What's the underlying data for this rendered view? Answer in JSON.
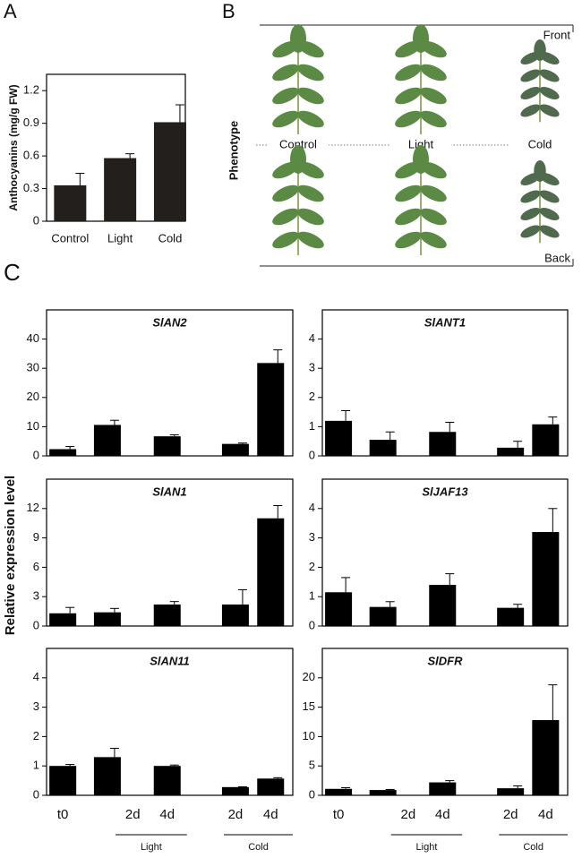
{
  "panels": {
    "a": "A",
    "b": "B",
    "c": "C"
  },
  "phenotype": {
    "label": "Phenotype",
    "front": "Front",
    "back": "Back",
    "treatments": [
      "Control",
      "Light",
      "Cold"
    ]
  },
  "chart_data": [
    {
      "type": "bar",
      "ylabel": "Anthocyanins (mg/g FW)",
      "categories": [
        "Control",
        "Light",
        "Cold"
      ],
      "values": [
        0.33,
        0.58,
        0.91
      ],
      "errors": [
        0.11,
        0.04,
        0.16
      ],
      "color": "#231f1c",
      "ylim": [
        0,
        1.35
      ],
      "yticks": [
        0,
        0.3,
        0.6,
        0.9,
        1.2
      ]
    },
    {
      "type": "bar",
      "title": "SlAN2",
      "ylabel": "Relative expression level",
      "values": [
        2.3,
        10.6,
        6.7,
        4.1,
        31.8
      ],
      "errors": [
        0.9,
        1.6,
        0.5,
        0.3,
        4.5
      ],
      "color": "#000000",
      "ylim": [
        0,
        50
      ],
      "yticks": [
        0,
        10,
        20,
        30,
        40
      ]
    },
    {
      "type": "bar",
      "title": "SlANT1",
      "values": [
        1.2,
        0.55,
        0.82,
        0.28,
        1.08
      ],
      "errors": [
        0.35,
        0.27,
        0.33,
        0.22,
        0.25
      ],
      "color": "#000000",
      "ylim": [
        0,
        5
      ],
      "yticks": [
        0,
        1,
        2,
        3,
        4
      ]
    },
    {
      "type": "bar",
      "title": "SlAN1",
      "values": [
        1.3,
        1.4,
        2.2,
        2.2,
        11.0
      ],
      "errors": [
        0.6,
        0.4,
        0.3,
        1.5,
        1.3
      ],
      "color": "#000000",
      "ylim": [
        0,
        15
      ],
      "yticks": [
        0,
        3,
        6,
        9,
        12
      ]
    },
    {
      "type": "bar",
      "title": "SlJAF13",
      "values": [
        1.15,
        0.65,
        1.4,
        0.62,
        3.2
      ],
      "errors": [
        0.5,
        0.18,
        0.38,
        0.12,
        0.8
      ],
      "color": "#000000",
      "ylim": [
        0,
        5
      ],
      "yticks": [
        0,
        1,
        2,
        3,
        4
      ]
    },
    {
      "type": "bar",
      "title": "SlAN11",
      "categories": [
        "t0",
        "2d",
        "4d",
        "2d",
        "4d"
      ],
      "groups": [
        "Light",
        "Cold"
      ],
      "values": [
        1.0,
        1.3,
        1.0,
        0.28,
        0.57
      ],
      "errors": [
        0.05,
        0.3,
        0.03,
        0.01,
        0.03
      ],
      "color": "#000000",
      "ylim": [
        0,
        5
      ],
      "yticks": [
        0,
        1,
        2,
        3,
        4
      ]
    },
    {
      "type": "bar",
      "title": "SlDFR",
      "categories": [
        "t0",
        "2d",
        "4d",
        "2d",
        "4d"
      ],
      "groups": [
        "Light",
        "Cold"
      ],
      "values": [
        1.1,
        0.9,
        2.2,
        1.2,
        12.8
      ],
      "errors": [
        0.2,
        0.1,
        0.3,
        0.4,
        6.0
      ],
      "color": "#000000",
      "ylim": [
        0,
        25
      ],
      "yticks": [
        0,
        5,
        10,
        15,
        20
      ]
    }
  ]
}
